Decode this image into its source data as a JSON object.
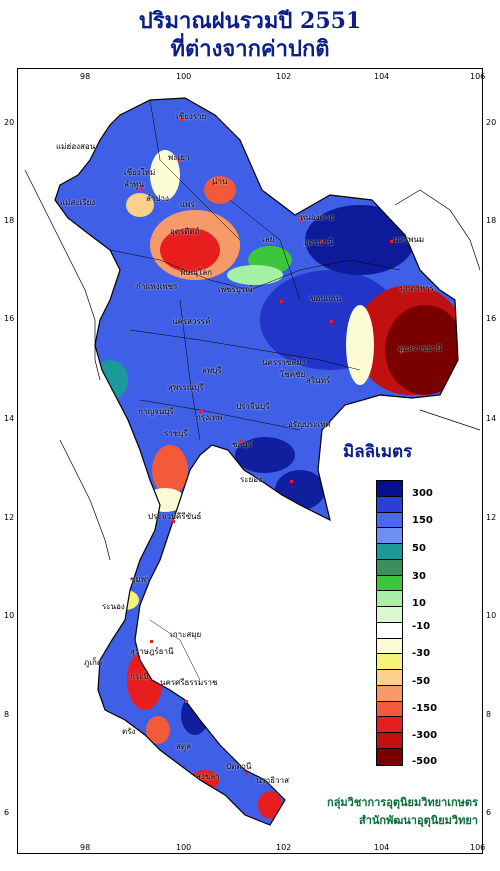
{
  "title_line1": "ปริมาณฝนรวมปี  2551",
  "title_line2": "ที่ต่างจากค่าปกติ",
  "axes": {
    "x_ticks": [
      "98",
      "100",
      "102",
      "104",
      "106"
    ],
    "y_ticks": [
      "20",
      "18",
      "16",
      "14",
      "12",
      "10",
      "8",
      "6"
    ]
  },
  "legend": {
    "title": "มิลลิเมตร",
    "colors": [
      "#0a0f8f",
      "#2a3fd8",
      "#4a68ee",
      "#6f8ff4",
      "#1c9a9a",
      "#3a8f5c",
      "#3cc63c",
      "#a6f0a6",
      "#d9f7d0",
      "#ffffff",
      "#fbfbd4",
      "#f7f27a",
      "#fcd08a",
      "#f79a6a",
      "#f25a3a",
      "#e81e1e",
      "#c01010",
      "#7a0000"
    ],
    "labels": [
      "300",
      "150",
      "50",
      "30",
      "10",
      "-10",
      "-30",
      "-50",
      "-150",
      "-300",
      "-500"
    ]
  },
  "credit_line1": "กลุ่มวิชาการอุตุนิยมวิทยาเกษตร",
  "credit_line2": "สำนักพัฒนาอุตุนิยมวิทยา",
  "places": {
    "chiang_rai": "เชียงราย",
    "mae_hong_son": "แม่ฮ่องสอน",
    "phayao": "พะเยา",
    "chiang_mai": "เชียงใหม่",
    "lamphun": "ลำพูน",
    "lampang": "ลำปาง",
    "phrae": "แพร่",
    "nan": "น่าน",
    "mae_sariang": "แม่สะเรียง",
    "uttaradit": "อุตรดิตถ์",
    "nong_khai": "หนองคาย",
    "udon_thani": "อุดรธานี",
    "nakhon_phanom": "นครพนม",
    "loei": "เลย",
    "mukdahan": "มุกดาหาร",
    "phitsanulok": "พิษณุโลก",
    "kamphaeng_phet": "กำแพงเพชร",
    "phetchabun": "เพชรบูรณ์",
    "khon_kaen": "ขอนแก่น",
    "nakhon_sawan": "นครสวรรค์",
    "ubon": "อุบลราชธานี",
    "nakhon_ratchasima": "นครราชสีมา",
    "chokchai": "โชคชัย",
    "surin": "สุรินทร์",
    "lop_buri": "ลพบุรี",
    "suphan_buri": "สุพรรณบุรี",
    "kanchanaburi": "กาญจนบุรี",
    "bangkok": "กรุงเทพ",
    "prachin_buri": "ปราจีนบุรี",
    "aranyaprathet": "อรัญประเทศ",
    "ratchaburi": "ราชบุรี",
    "chon_buri": "ชลบุรี",
    "rayong": "ระยอง",
    "prachuap": "ประจวบคีรีขันธ์",
    "chumphon": "ชุมพร",
    "ranong": "ระนอง",
    "ko_samui": "เกาะสมุย",
    "phuket": "ภูเก็ต",
    "surat_thani": "สุราษฎร์ธานี",
    "krabi": "กระบี่",
    "nakhon_si": "นครศรีธรรมราช",
    "trang": "ตรัง",
    "satun": "สตูล",
    "songkhla": "สงขลา",
    "pattani": "ปัตตานี",
    "narathiwat": "นราธิวาส"
  }
}
